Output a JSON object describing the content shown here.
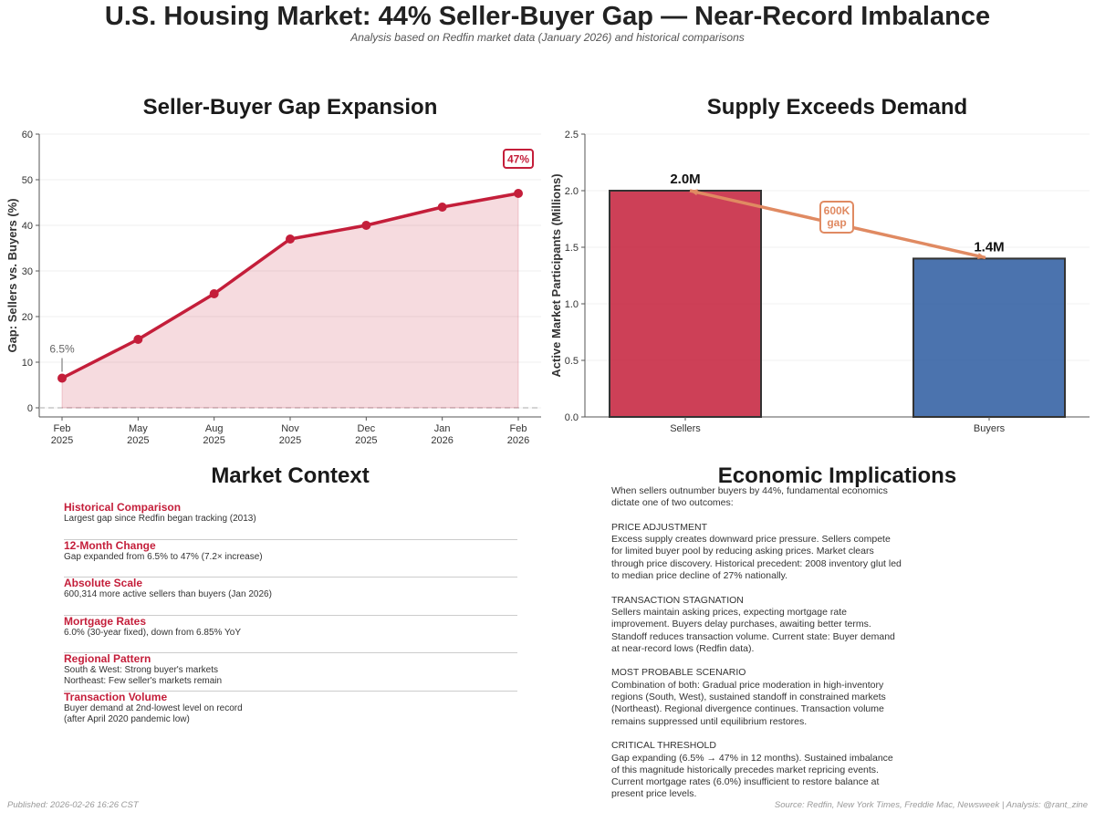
{
  "header": {
    "title": "U.S. Housing Market: 44% Seller-Buyer Gap — Near-Record Imbalance",
    "subtitle": "Analysis based on Redfin market data (January 2026) and historical comparisons"
  },
  "chart_data": [
    {
      "type": "line",
      "title": "Seller-Buyer Gap Expansion",
      "xlabel": "",
      "ylabel": "Gap: Sellers vs. Buyers (%)",
      "categories": [
        "Feb\n2025",
        "May\n2025",
        "Aug\n2025",
        "Nov\n2025",
        "Dec\n2025",
        "Jan\n2026",
        "Feb\n2026"
      ],
      "values": [
        6.5,
        15,
        25,
        37,
        40,
        44,
        47
      ],
      "ylim": [
        -2,
        60
      ],
      "yticks": [
        0,
        10,
        20,
        30,
        40,
        50,
        60
      ],
      "annotations": [
        {
          "label": "6.5%",
          "point_index": 0
        },
        {
          "label": "47%",
          "point_index": 6
        }
      ],
      "color": "#c41e3a",
      "fill": true,
      "reference_line": 0
    },
    {
      "type": "bar",
      "title": "Supply Exceeds Demand",
      "ylabel": "Active Market Participants (Millions)",
      "categories": [
        "Sellers",
        "Buyers"
      ],
      "values": [
        2.0,
        1.4
      ],
      "value_labels": [
        "2.0M",
        "1.4M"
      ],
      "colors": [
        "#c41e3a",
        "#2b5aa0"
      ],
      "ylim": [
        0,
        2.5
      ],
      "yticks": [
        "0.0",
        "0.5",
        "1.0",
        "1.5",
        "2.0",
        "2.5"
      ],
      "gap_annotation": "600K\ngap",
      "gap_color": "#e08a62"
    }
  ],
  "context": {
    "title": "Market Context",
    "items": [
      {
        "heading": "Historical Comparison",
        "text": "Largest gap since Redfin began tracking (2013)"
      },
      {
        "heading": "12-Month Change",
        "text": "Gap expanded from 6.5% to 47% (7.2× increase)"
      },
      {
        "heading": "Absolute Scale",
        "text": "600,314 more active sellers than buyers (Jan 2026)"
      },
      {
        "heading": "Mortgage Rates",
        "text": "6.0% (30-year fixed), down from 6.85% YoY"
      },
      {
        "heading": "Regional Pattern",
        "text": "South & West: Strong buyer's markets\nNortheast: Few seller's markets remain"
      },
      {
        "heading": "Transaction Volume",
        "text": "Buyer demand at 2nd-lowest level on record\n(after April 2020 pandemic low)"
      }
    ]
  },
  "implications": {
    "title": "Economic Implications",
    "intro": "When sellers outnumber buyers by 44%, fundamental economics dictate one of two outcomes:",
    "sections": [
      {
        "heading": "PRICE ADJUSTMENT",
        "text": "Excess supply creates downward price pressure. Sellers compete for limited buyer pool by reducing asking prices. Market clears through price discovery. Historical precedent: 2008 inventory glut led to median price decline of 27% nationally."
      },
      {
        "heading": "TRANSACTION STAGNATION",
        "text": "Sellers maintain asking prices, expecting mortgage rate improvement. Buyers delay purchases, awaiting better terms. Standoff reduces transaction volume. Current state: Buyer demand at near-record lows (Redfin data)."
      },
      {
        "heading": "MOST PROBABLE SCENARIO",
        "text": "Combination of both: Gradual price moderation in high-inventory regions (South, West), sustained standoff in constrained markets (Northeast). Regional divergence continues. Transaction volume remains suppressed until equilibrium restores."
      },
      {
        "heading": "CRITICAL THRESHOLD",
        "text": "Gap expanding (6.5% → 47% in 12 months). Sustained imbalance of this magnitude historically precedes market repricing events. Current mortgage rates (6.0%) insufficient to restore balance at present price levels."
      }
    ]
  },
  "footer": {
    "published": "Published: 2026-02-26 16:26 CST",
    "source": "Source: Redfin, New York Times, Freddie Mac, Newsweek | Analysis: @rant_zine"
  }
}
